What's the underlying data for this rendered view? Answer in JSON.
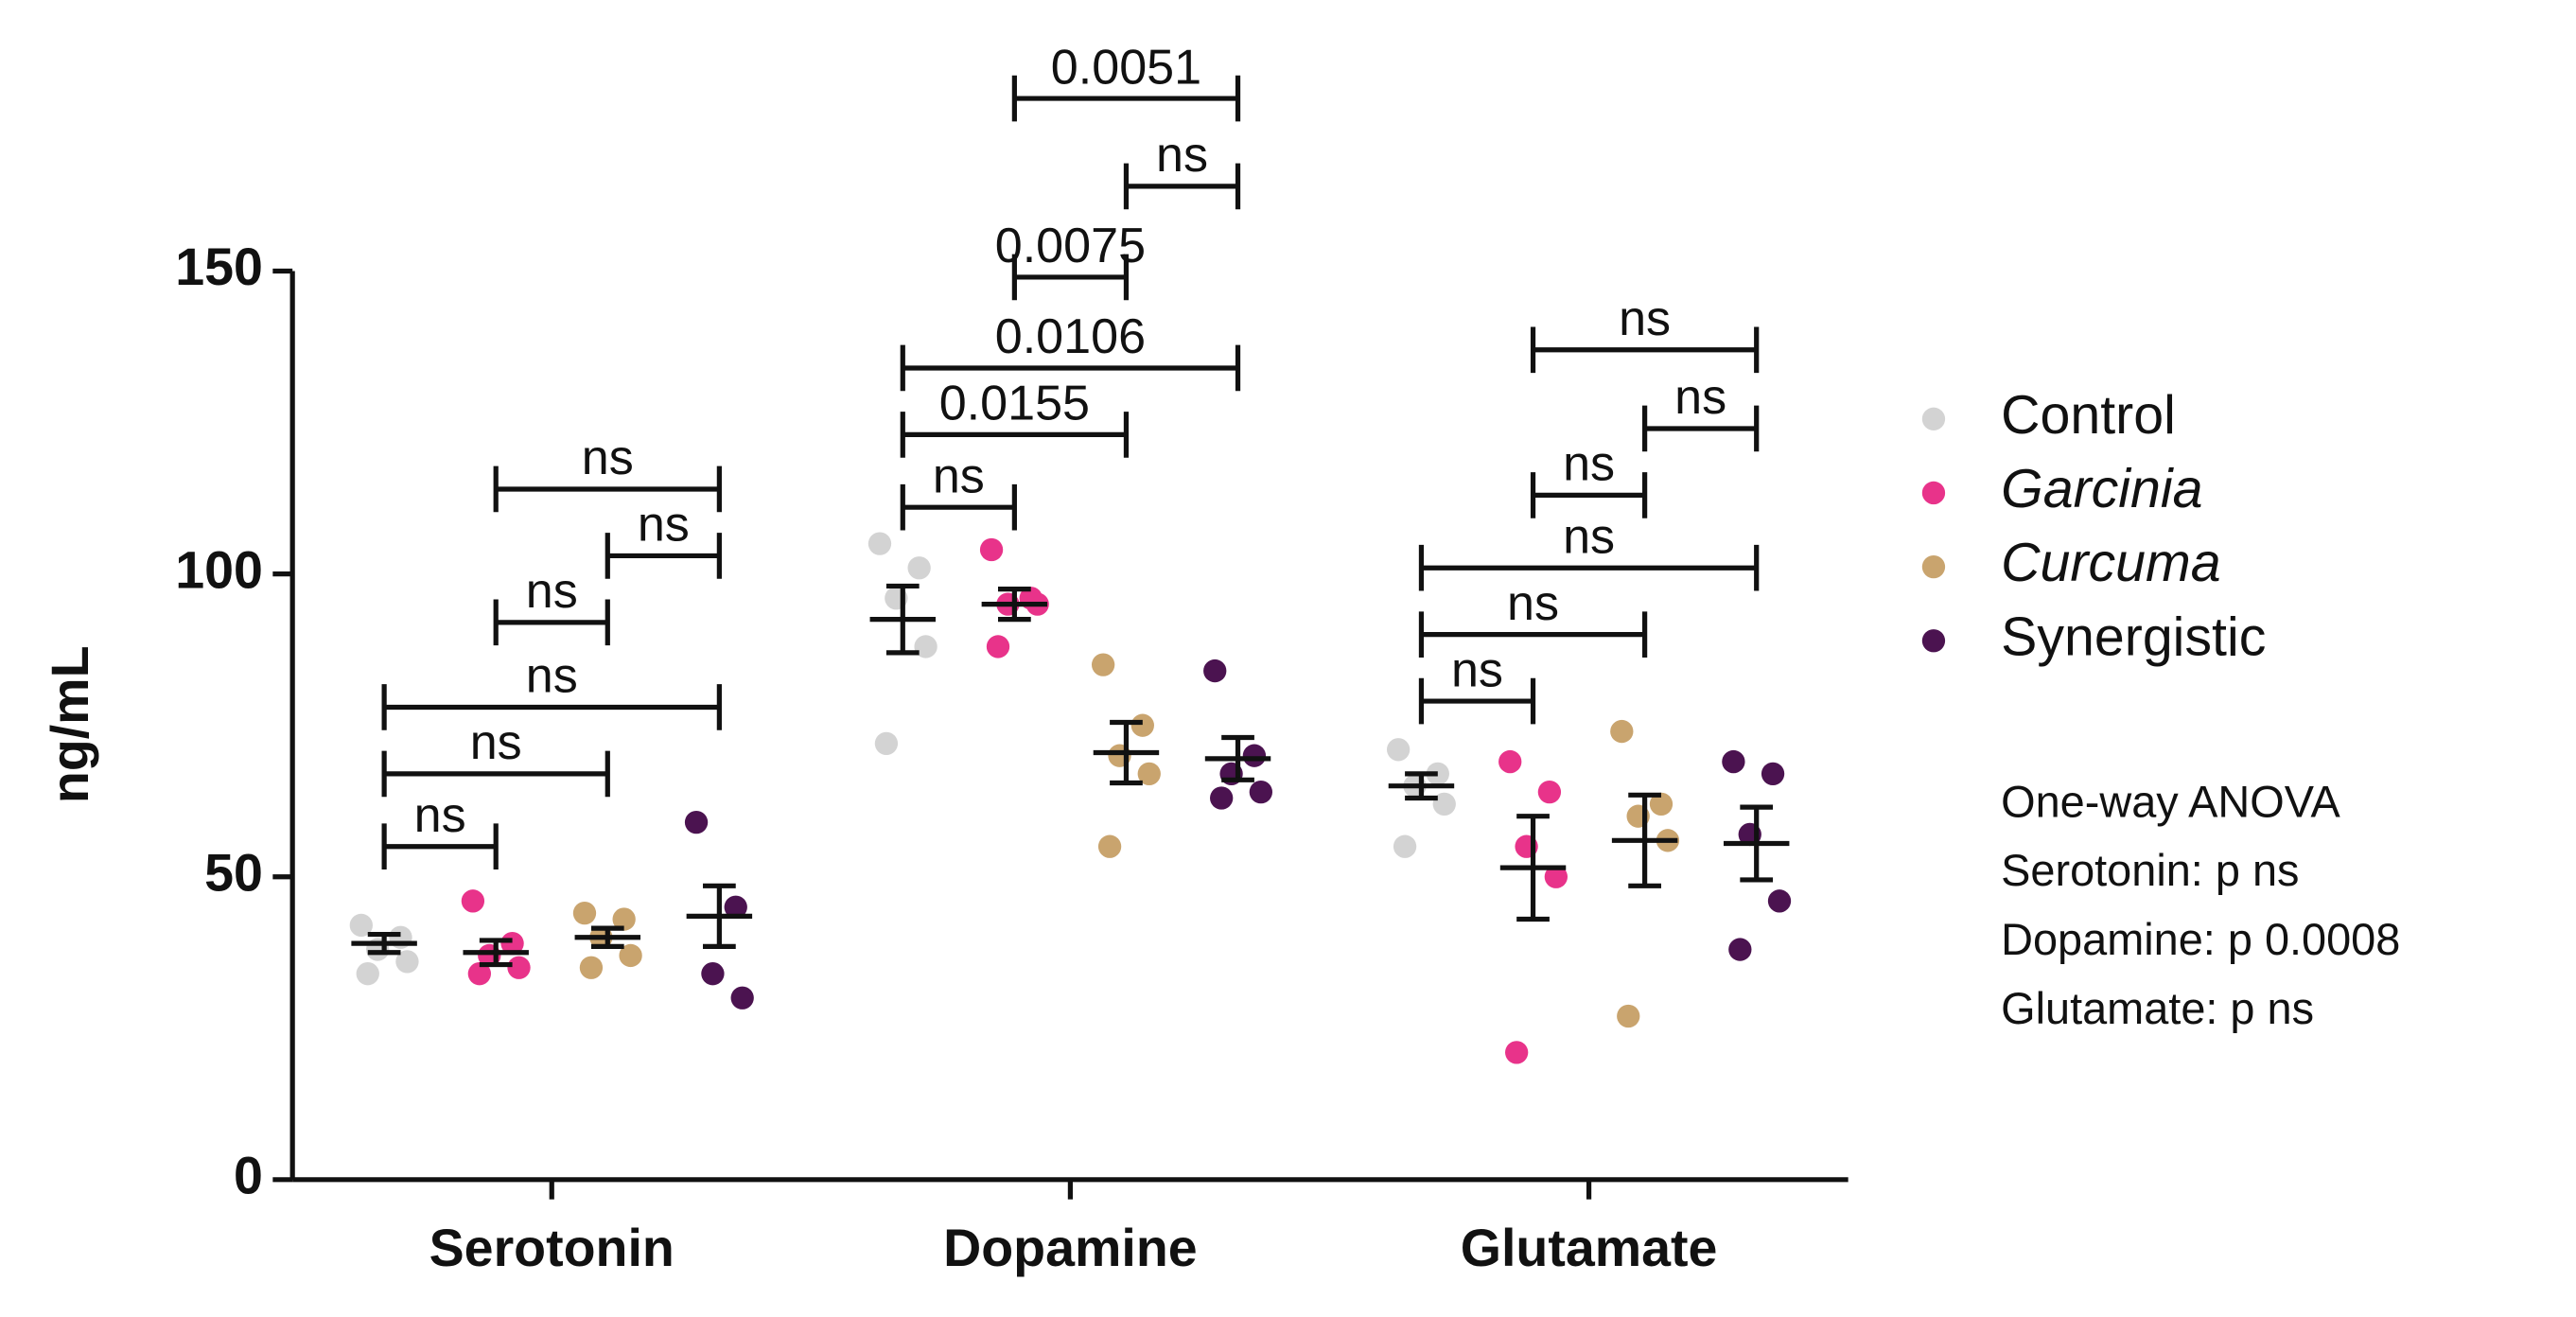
{
  "chart_data": {
    "type": "scatter_dot",
    "ylabel": "ng/mL",
    "categories": [
      "Serotonin",
      "Dopamine",
      "Glutamate"
    ],
    "ylim": [
      0,
      150
    ],
    "yticks": [
      0,
      50,
      100,
      150
    ],
    "series": [
      {
        "name": "Control",
        "color": "#d3d3d3",
        "italic": false,
        "values": [
          [
            42,
            40,
            38,
            36,
            34
          ],
          [
            105,
            101,
            96,
            88,
            72
          ],
          [
            71,
            67,
            65,
            62,
            55
          ]
        ],
        "mean": [
          39,
          92.5,
          65
        ],
        "sem": [
          1.5,
          5.5,
          2
        ]
      },
      {
        "name": "Garcinia",
        "color": "#e8338a",
        "italic": true,
        "values": [
          [
            46,
            39,
            37,
            35,
            34
          ],
          [
            104,
            96,
            95,
            95,
            88
          ],
          [
            69,
            64,
            55,
            50,
            21
          ]
        ],
        "mean": [
          37.5,
          95,
          51.5
        ],
        "sem": [
          2,
          2.5,
          8.5
        ]
      },
      {
        "name": "Curcuma",
        "color": "#c9a46e",
        "italic": true,
        "values": [
          [
            44,
            43,
            40,
            37,
            35
          ],
          [
            85,
            75,
            70,
            67,
            55
          ],
          [
            74,
            62,
            60,
            56,
            27
          ]
        ],
        "mean": [
          40,
          70.5,
          56
        ],
        "sem": [
          1.5,
          5,
          7.5
        ]
      },
      {
        "name": "Synergistic",
        "color": "#4b1350",
        "italic": false,
        "values": [
          [
            59,
            45,
            34,
            30
          ],
          [
            84,
            70,
            67,
            64,
            63
          ],
          [
            69,
            67,
            57,
            46,
            38
          ]
        ],
        "mean": [
          43.5,
          69.5,
          55.5
        ],
        "sem": [
          5,
          3.5,
          6
        ]
      }
    ],
    "annotations": [
      {
        "category": 0,
        "from": 0,
        "to": 1,
        "y": 55,
        "label": "ns"
      },
      {
        "category": 0,
        "from": 0,
        "to": 2,
        "y": 67,
        "label": "ns"
      },
      {
        "category": 0,
        "from": 0,
        "to": 3,
        "y": 78,
        "label": "ns"
      },
      {
        "category": 0,
        "from": 1,
        "to": 2,
        "y": 92,
        "label": "ns"
      },
      {
        "category": 0,
        "from": 2,
        "to": 3,
        "y": 103,
        "label": "ns"
      },
      {
        "category": 0,
        "from": 1,
        "to": 3,
        "y": 114,
        "label": "ns"
      },
      {
        "category": 1,
        "from": 0,
        "to": 1,
        "y": 111,
        "label": "ns"
      },
      {
        "category": 1,
        "from": 0,
        "to": 2,
        "y": 123,
        "label": "0.0155"
      },
      {
        "category": 1,
        "from": 0,
        "to": 3,
        "y": 134,
        "label": "0.0106"
      },
      {
        "category": 1,
        "from": 1,
        "to": 2,
        "y": 149,
        "label": "0.0075"
      },
      {
        "category": 1,
        "from": 2,
        "to": 3,
        "y": 164,
        "label": "ns"
      },
      {
        "category": 1,
        "from": 1,
        "to": 3,
        "y": 178.5,
        "label": "0.0051"
      },
      {
        "category": 2,
        "from": 0,
        "to": 1,
        "y": 79,
        "label": "ns"
      },
      {
        "category": 2,
        "from": 0,
        "to": 2,
        "y": 90,
        "label": "ns"
      },
      {
        "category": 2,
        "from": 0,
        "to": 3,
        "y": 101,
        "label": "ns"
      },
      {
        "category": 2,
        "from": 1,
        "to": 2,
        "y": 113,
        "label": "ns"
      },
      {
        "category": 2,
        "from": 2,
        "to": 3,
        "y": 124,
        "label": "ns"
      },
      {
        "category": 2,
        "from": 1,
        "to": 3,
        "y": 137,
        "label": "ns"
      }
    ],
    "notes": [
      "One-way ANOVA",
      "Serotonin: p ns",
      "Dopamine: p 0.0008",
      "Glutamate: p ns"
    ]
  }
}
